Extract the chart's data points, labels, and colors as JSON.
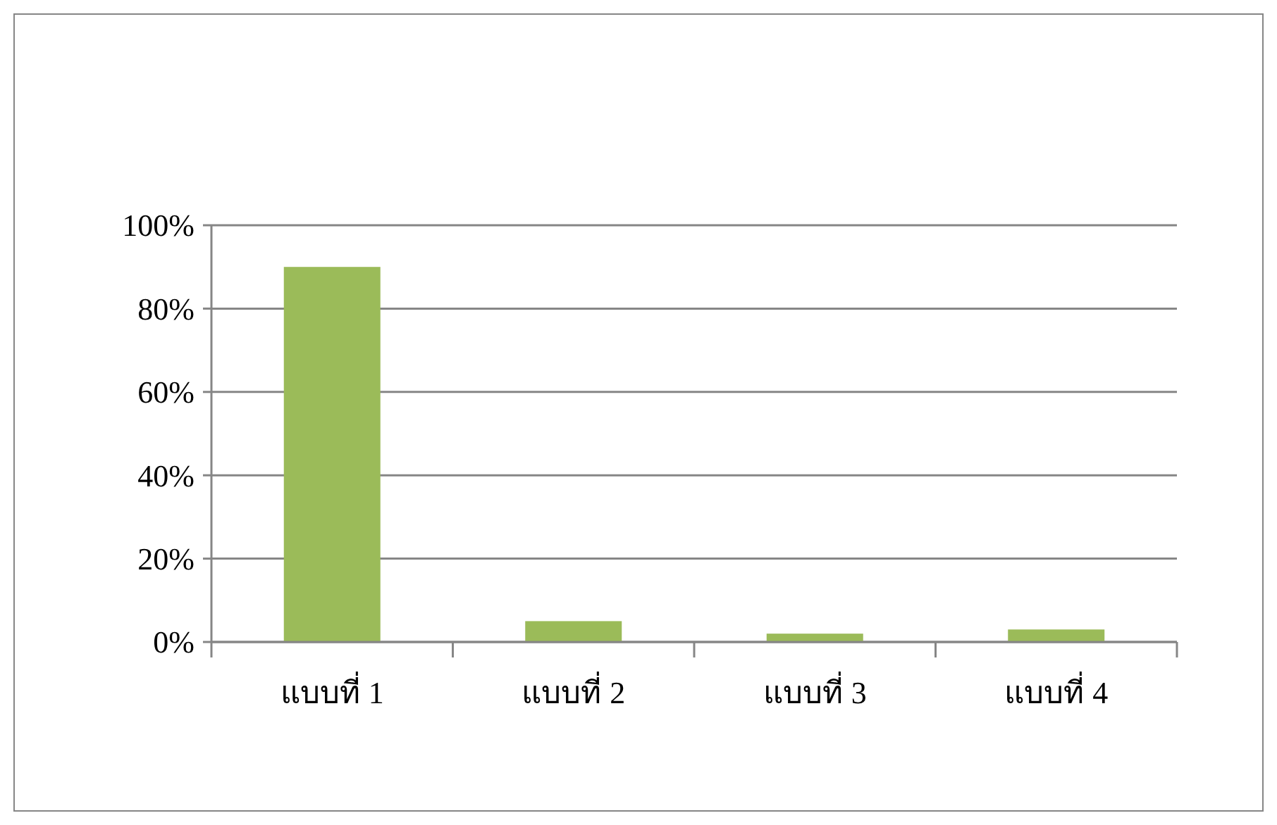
{
  "chart_data": {
    "type": "bar",
    "categories": [
      "แบบที่ 1",
      "แบบที่ 2",
      "แบบที่ 3",
      "แบบที่ 4"
    ],
    "values": [
      90,
      5,
      2,
      3
    ],
    "color": "#9bbb59",
    "ylim": [
      0,
      100
    ],
    "yticks": [
      {
        "value": 0,
        "label": "0%"
      },
      {
        "value": 20,
        "label": "20%"
      },
      {
        "value": 40,
        "label": "40%"
      },
      {
        "value": 60,
        "label": "60%"
      },
      {
        "value": 80,
        "label": "80%"
      },
      {
        "value": 100,
        "label": "100%"
      }
    ],
    "grid": "y"
  }
}
